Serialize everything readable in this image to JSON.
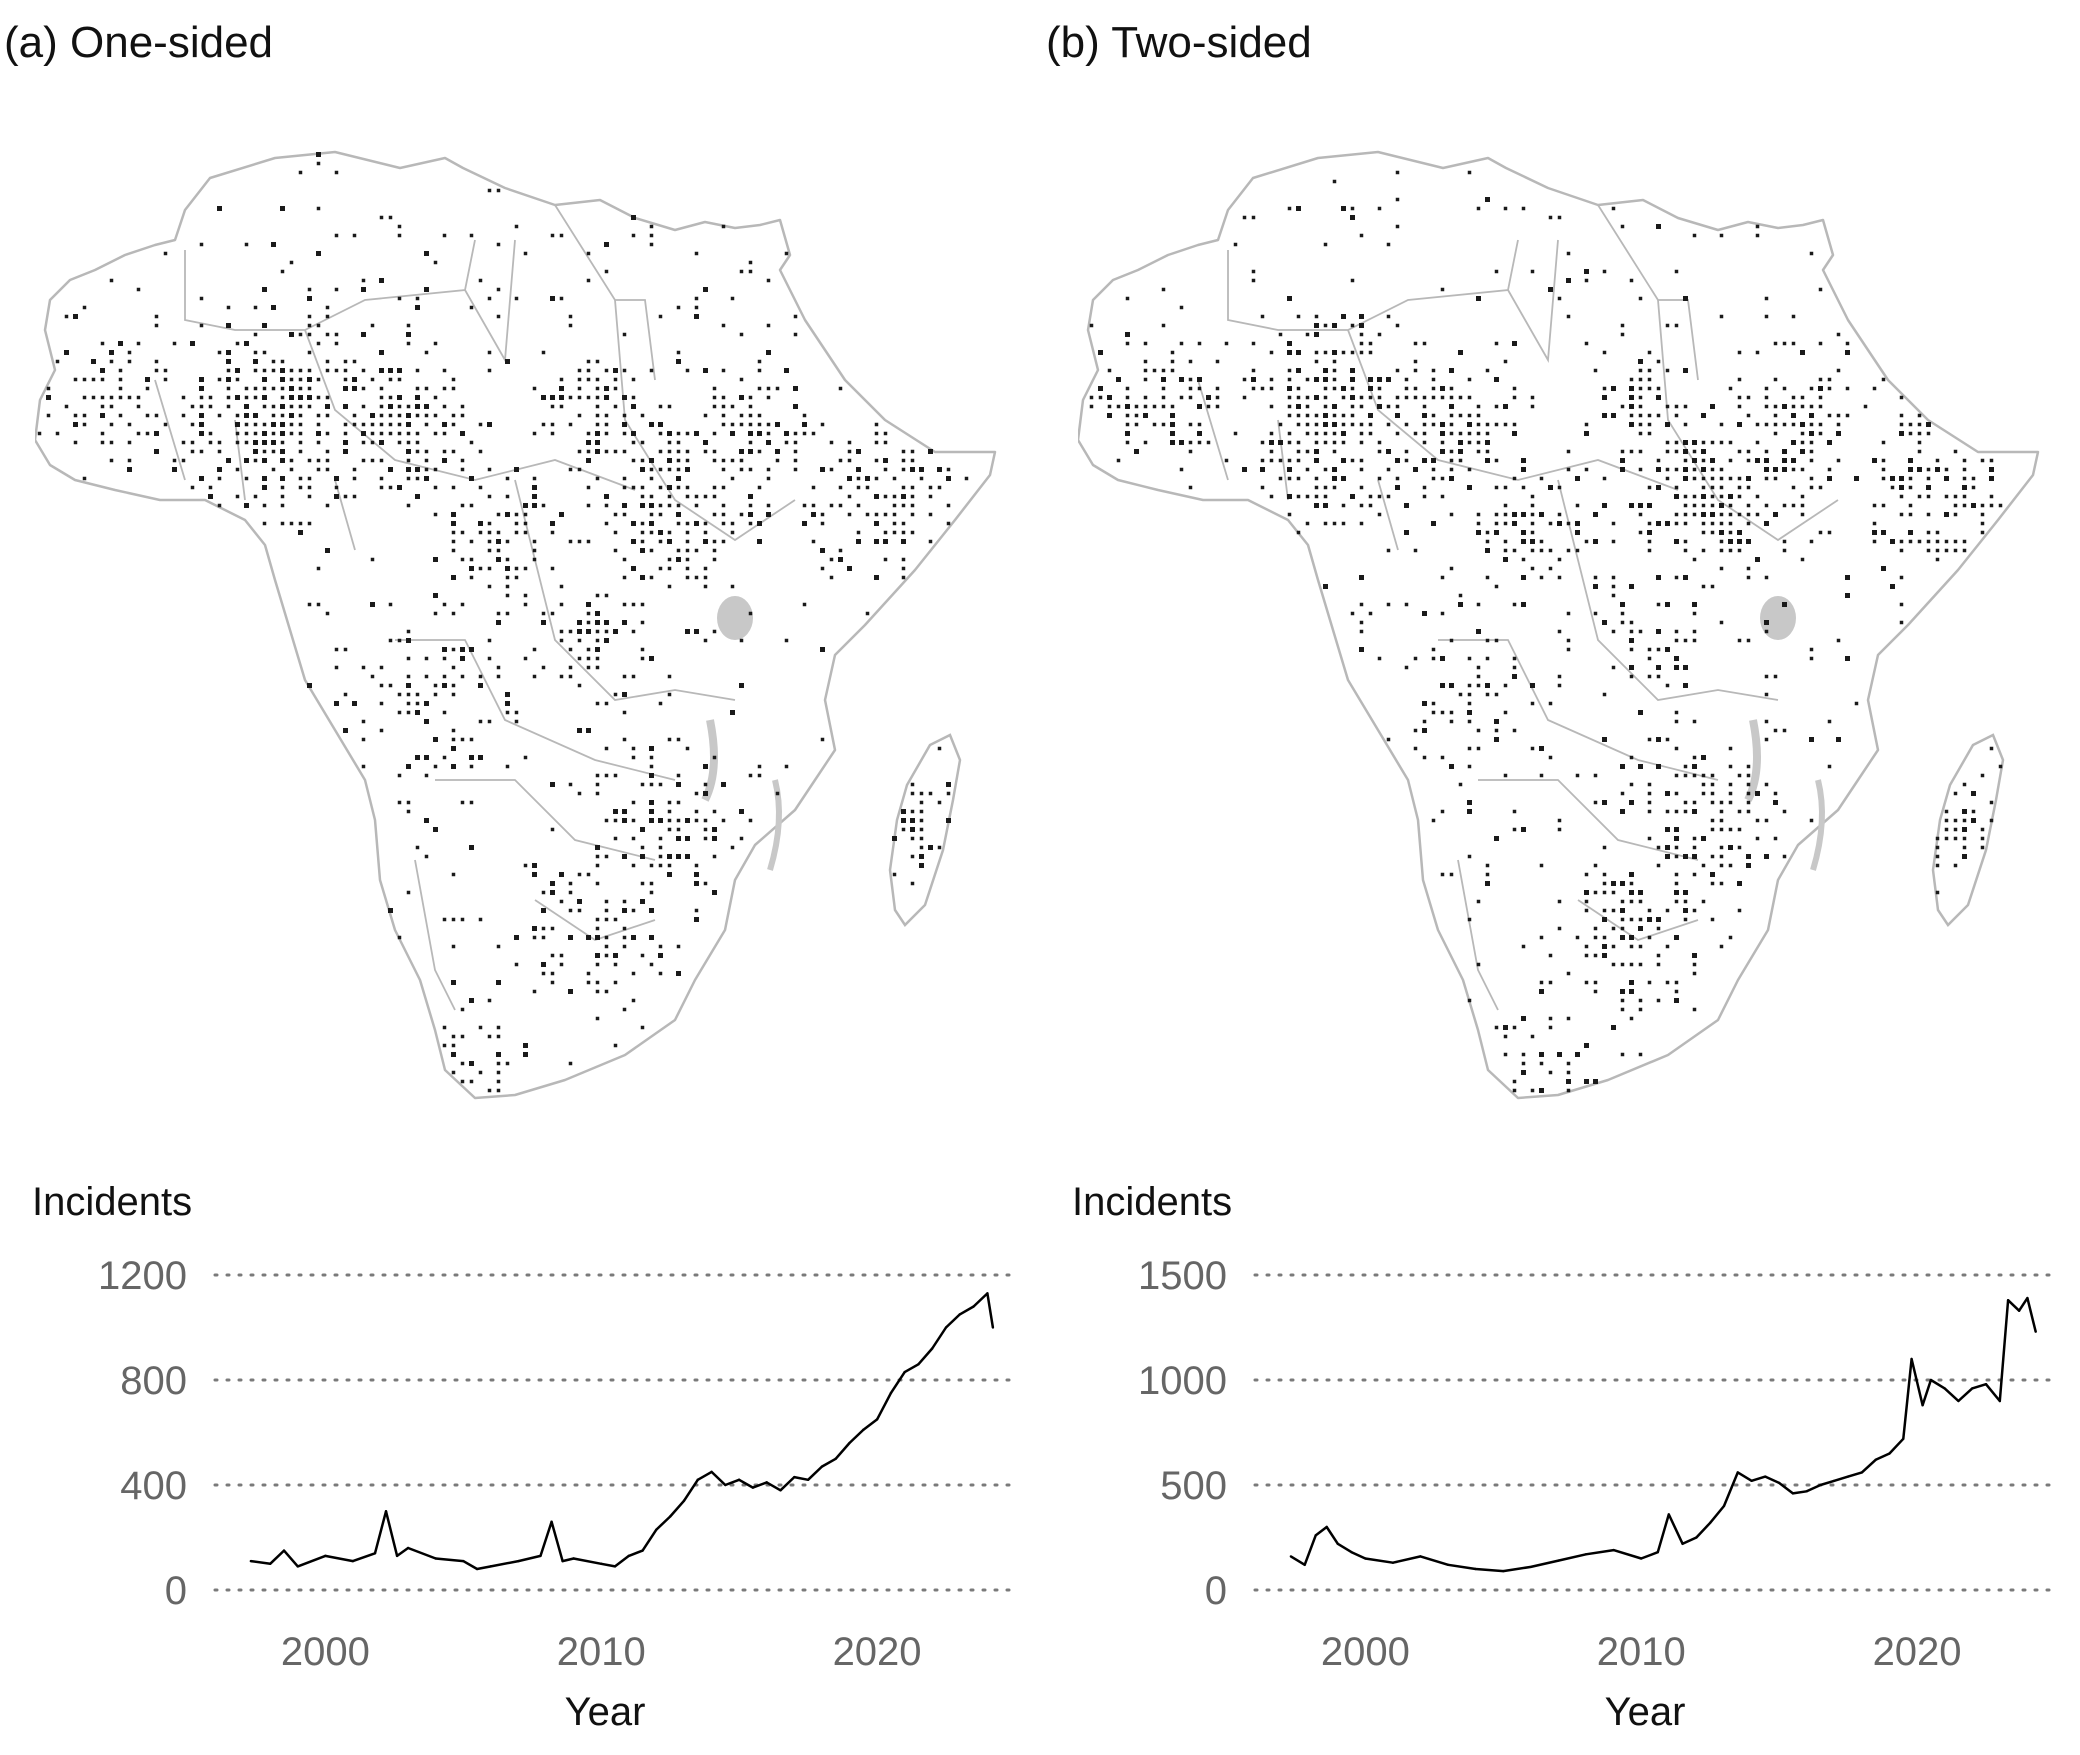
{
  "panels": [
    {
      "label": "(a) One-sided"
    },
    {
      "label": "(b) Two-sided"
    }
  ],
  "colors": {
    "line": "#000000",
    "grid": "#7a7a7a",
    "tick_text": "#666666",
    "axis_title": "#111111",
    "map_border": "#b8b8b8",
    "map_cell": "#1a1a1a",
    "map_water": "#c8c8c8"
  },
  "chart_data": [
    {
      "type": "line",
      "title": "",
      "xlabel": "Year",
      "ylabel": "Incidents",
      "xlim": [
        1996,
        2025
      ],
      "ylim": [
        0,
        1200
      ],
      "xticks": [
        2000,
        2010,
        2020
      ],
      "yticks": [
        0,
        400,
        800,
        1200
      ],
      "grid": "horizontal dotted",
      "series": [
        {
          "x": [
            1997.3,
            1998,
            1998.5,
            1999,
            2000,
            2001,
            2001.8,
            2002.2,
            2002.6,
            2003,
            2004,
            2005,
            2005.5,
            2006,
            2007,
            2007.8,
            2008.2,
            2008.6,
            2009,
            2010,
            2010.5,
            2011,
            2011.5,
            2012,
            2012.5,
            2013,
            2013.5,
            2014,
            2014.5,
            2015,
            2015.5,
            2016,
            2016.5,
            2017,
            2017.5,
            2018,
            2018.5,
            2019,
            2019.5,
            2020,
            2020.5,
            2021,
            2021.5,
            2022,
            2022.5,
            2023,
            2023.5,
            2024,
            2024.2
          ],
          "y": [
            110,
            100,
            150,
            90,
            130,
            110,
            140,
            300,
            130,
            160,
            120,
            110,
            80,
            90,
            110,
            130,
            260,
            110,
            120,
            100,
            90,
            130,
            150,
            230,
            280,
            340,
            420,
            450,
            400,
            420,
            390,
            410,
            380,
            430,
            420,
            470,
            500,
            560,
            610,
            650,
            750,
            830,
            860,
            920,
            1000,
            1050,
            1080,
            1130,
            1000
          ]
        }
      ]
    },
    {
      "type": "line",
      "title": "",
      "xlabel": "Year",
      "ylabel": "Incidents",
      "xlim": [
        1996,
        2025
      ],
      "ylim": [
        0,
        1500
      ],
      "xticks": [
        2000,
        2010,
        2020
      ],
      "yticks": [
        0,
        500,
        1000,
        1500
      ],
      "grid": "horizontal dotted",
      "series": [
        {
          "x": [
            1997.3,
            1997.8,
            1998.2,
            1998.6,
            1999,
            1999.5,
            2000,
            2001,
            2002,
            2003,
            2004,
            2005,
            2006,
            2007,
            2008,
            2009,
            2010,
            2010.6,
            2011,
            2011.5,
            2012,
            2012.5,
            2013,
            2013.5,
            2014,
            2014.5,
            2015,
            2015.5,
            2016,
            2016.5,
            2017,
            2017.5,
            2018,
            2018.5,
            2019,
            2019.5,
            2019.8,
            2020.2,
            2020.5,
            2021,
            2021.5,
            2022,
            2022.5,
            2023,
            2023.3,
            2023.7,
            2024,
            2024.3
          ],
          "y": [
            160,
            120,
            260,
            300,
            220,
            180,
            150,
            130,
            160,
            120,
            100,
            90,
            110,
            140,
            170,
            190,
            150,
            180,
            360,
            220,
            250,
            320,
            400,
            560,
            520,
            540,
            510,
            460,
            470,
            500,
            520,
            540,
            560,
            620,
            650,
            720,
            1100,
            880,
            1000,
            960,
            900,
            960,
            980,
            900,
            1380,
            1330,
            1390,
            1230
          ]
        }
      ]
    }
  ]
}
